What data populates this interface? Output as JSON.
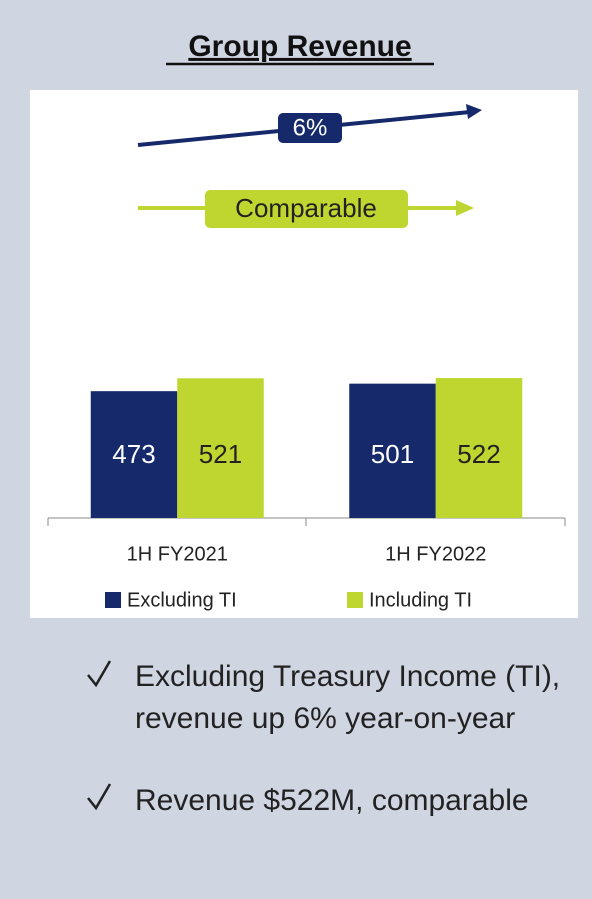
{
  "chart_data": {
    "type": "bar",
    "title": "Group Revenue",
    "categories": [
      "1H FY2021",
      "1H FY2022"
    ],
    "series": [
      {
        "name": "Excluding TI",
        "color": "#15296b",
        "values": [
          473,
          501
        ]
      },
      {
        "name": "Including TI",
        "color": "#bfd630",
        "values": [
          521,
          522
        ]
      }
    ],
    "ylim": [
      0,
      1600
    ],
    "annotations": [
      "6%",
      "Comparable"
    ],
    "legend": "bottom"
  },
  "bullets": [
    "Excluding Treasury Income (TI), revenue up 6% year-on-year",
    "Revenue $522M, comparable"
  ]
}
